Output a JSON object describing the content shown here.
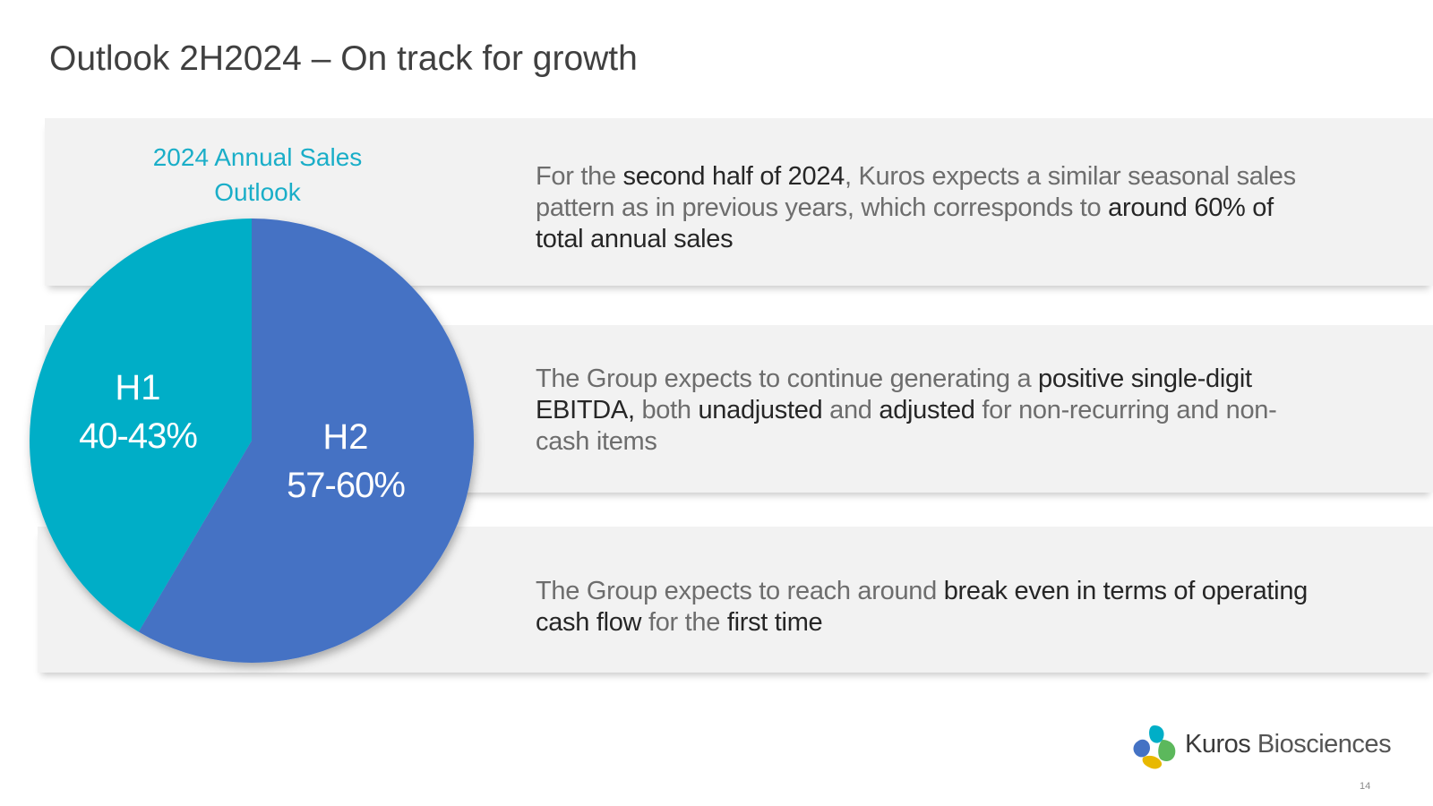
{
  "slide": {
    "title": "Outlook 2H2024 – On track for growth",
    "page_number": "14"
  },
  "chart_data": {
    "type": "pie",
    "title_line1": "2024 Annual Sales",
    "title_line2": "Outlook",
    "slices": [
      {
        "name": "H1",
        "label": "40-43%",
        "value": 41.5,
        "color": "#00aec7"
      },
      {
        "name": "H2",
        "label": "57-60%",
        "value": 58.5,
        "color": "#4472c4"
      }
    ]
  },
  "statements": [
    {
      "parts": [
        {
          "text": "For the ",
          "bold": false
        },
        {
          "text": "second half of 2024",
          "bold": true
        },
        {
          "text": ", Kuros expects a similar seasonal sales pattern as in previous years, which corresponds to ",
          "bold": false
        },
        {
          "text": "around 60% of total annual sales",
          "bold": true
        }
      ]
    },
    {
      "parts": [
        {
          "text": "The Group expects to continue generating a ",
          "bold": false
        },
        {
          "text": "positive single-digit EBITDA,",
          "bold": true
        },
        {
          "text": " both ",
          "bold": false
        },
        {
          "text": "unadjusted",
          "bold": true
        },
        {
          "text": " and ",
          "bold": false
        },
        {
          "text": "adjusted",
          "bold": true
        },
        {
          "text": " for non-recurring and non-cash items",
          "bold": false
        }
      ]
    },
    {
      "parts": [
        {
          "text": "The Group expects to reach around ",
          "bold": false
        },
        {
          "text": "break even in terms of operating cash flow",
          "bold": true
        },
        {
          "text": " for the ",
          "bold": false
        },
        {
          "text": "first time",
          "bold": true
        }
      ]
    }
  ],
  "brand": {
    "name_part1": "Kuros",
    "name_part2": " Biosciences",
    "logo_icon": "kuros-logo-icon",
    "logo_colors": [
      "#00aec7",
      "#4472c4",
      "#5cb85c",
      "#e8b800"
    ]
  }
}
